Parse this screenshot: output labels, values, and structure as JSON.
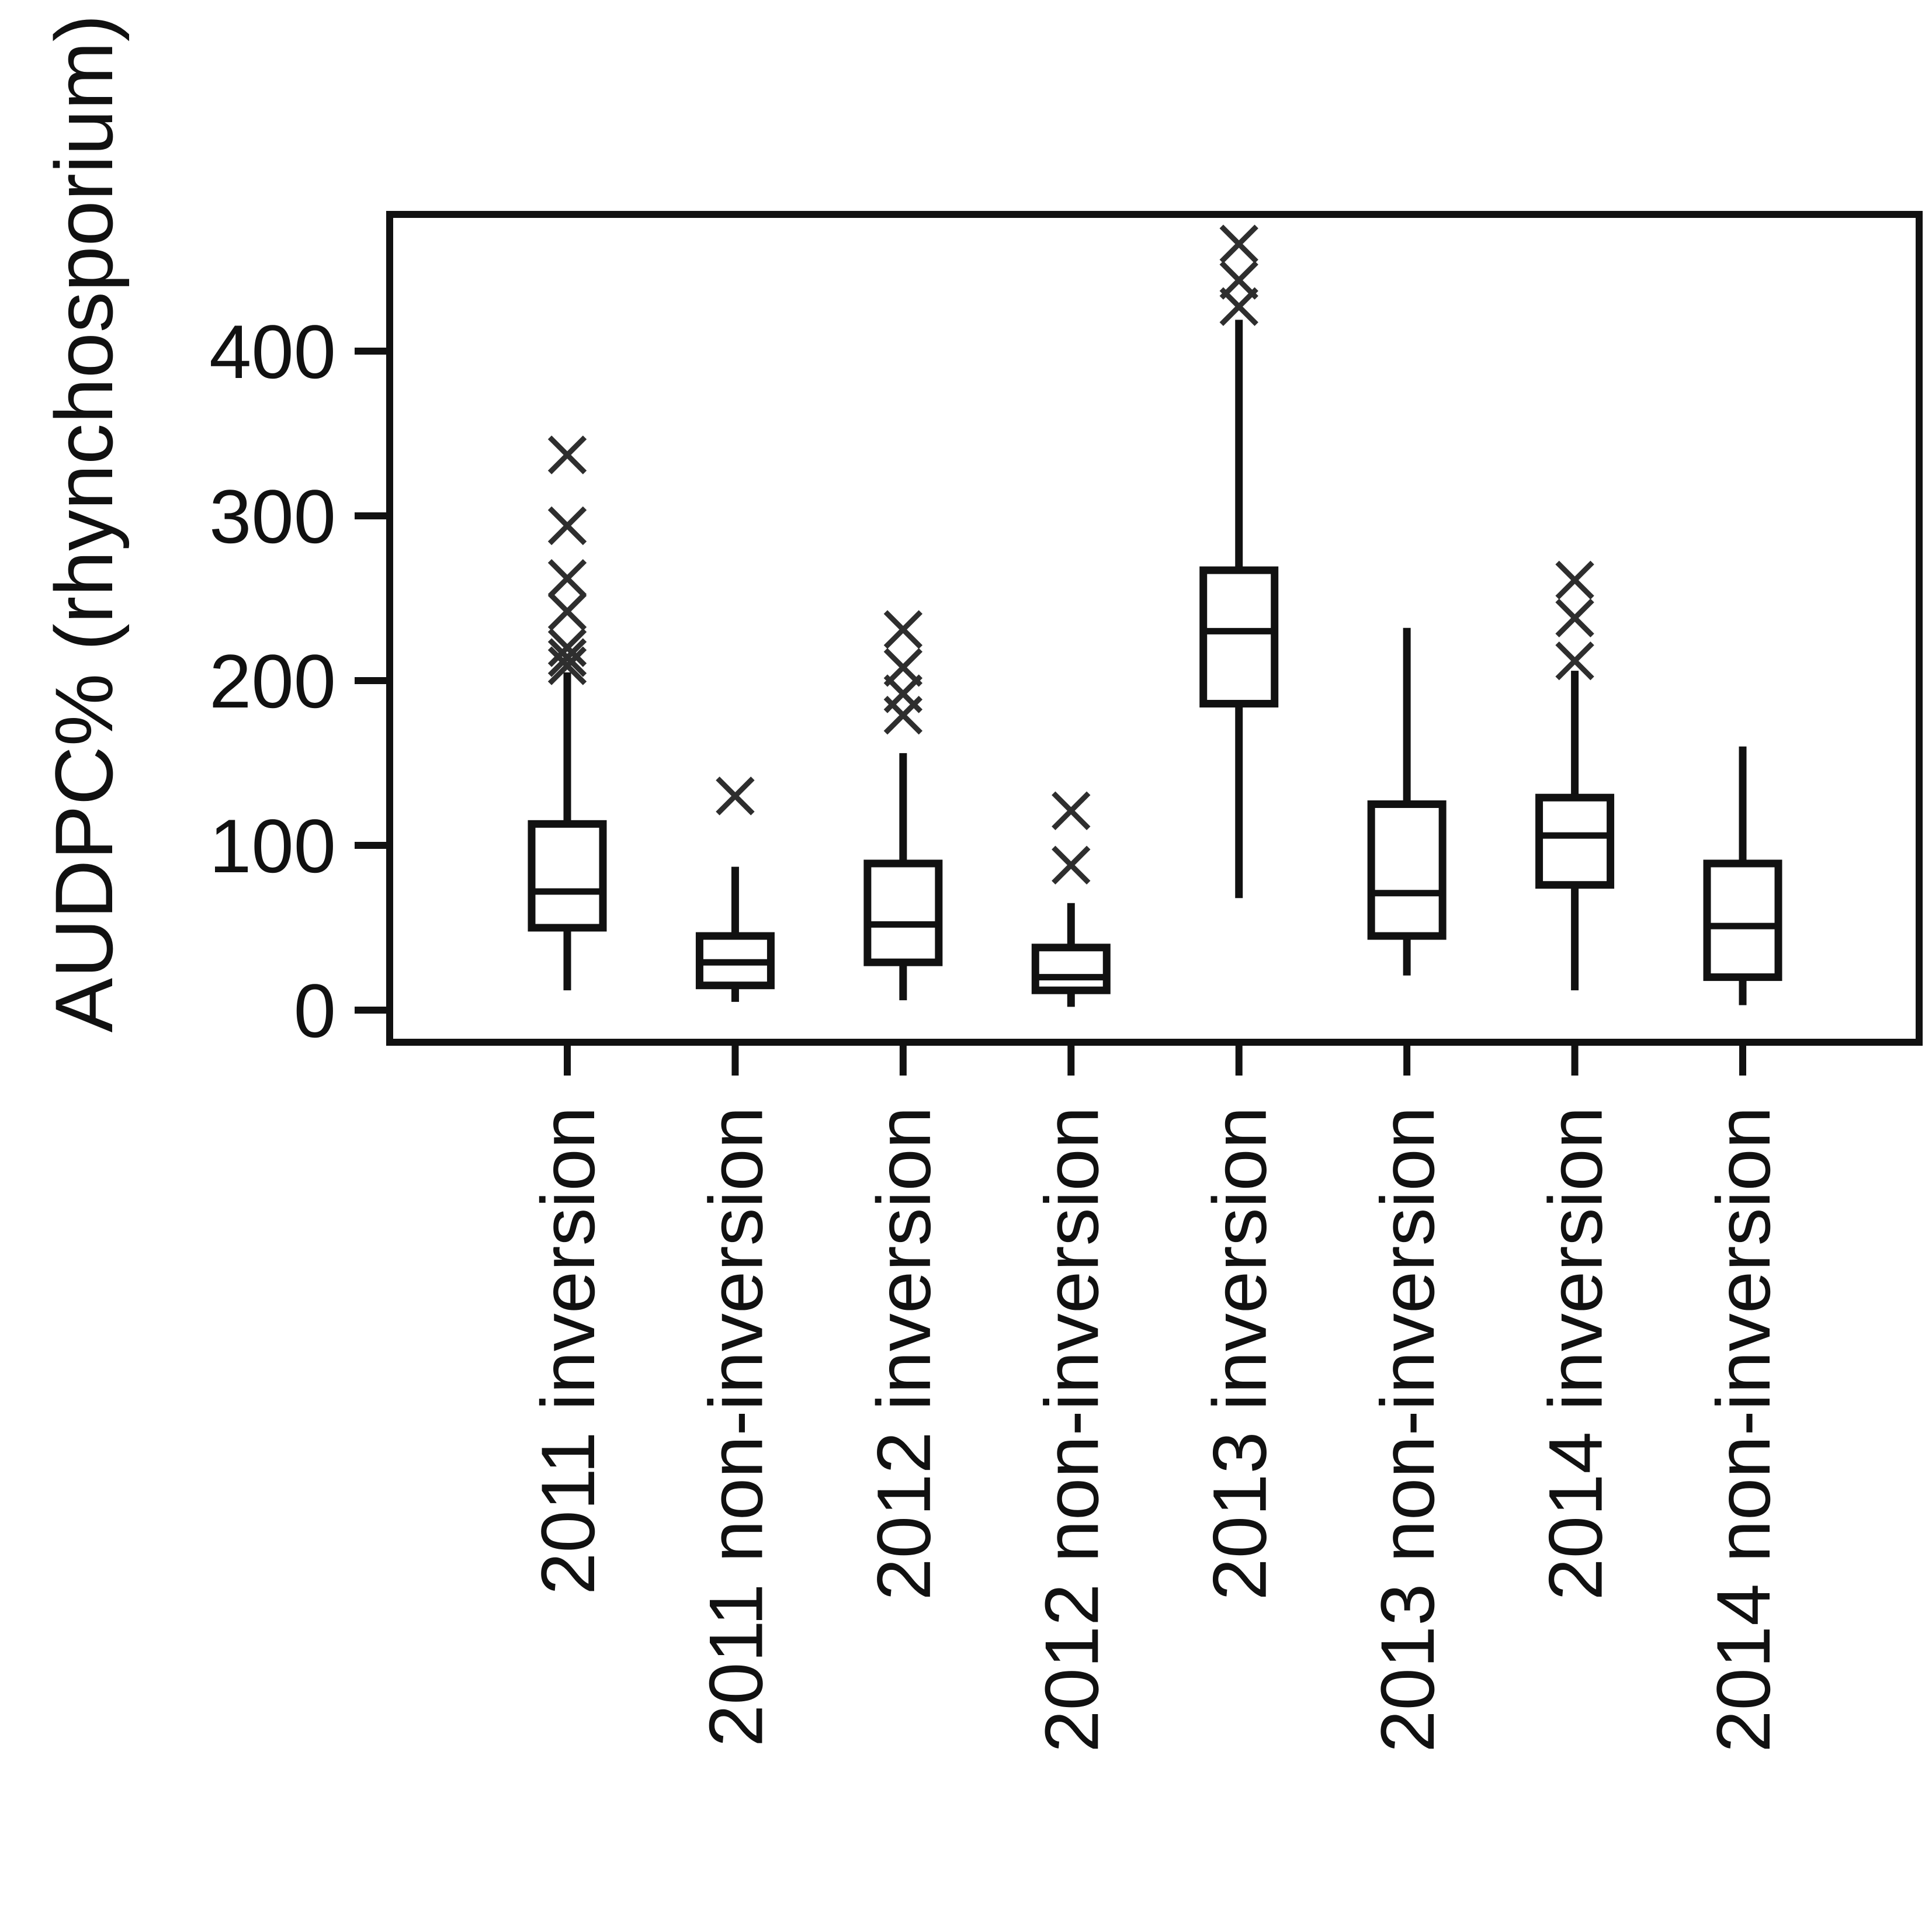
{
  "figure": {
    "background": "#ffffff",
    "ink_color": "#111111",
    "outlier_color": "#2e2e2e"
  },
  "chart_data": {
    "type": "boxplot",
    "title": "",
    "xlabel": "",
    "ylabel": "AUDPC% (rhynchosporium)",
    "ylim": [
      -20,
      483
    ],
    "yticks": [
      0,
      100,
      200,
      300,
      400
    ],
    "grid": false,
    "legend": false,
    "outlier_marker": "x-cross",
    "categories": [
      "2011 inversion",
      "2011 non-inversion",
      "2012 inversion",
      "2012 non-inversion",
      "2013 inversion",
      "2013 non-inversion",
      "2014 inversion",
      "2014 non-inversion"
    ],
    "boxes": [
      {
        "category": "2011 inversion",
        "whisker_low": 12,
        "q1": 50,
        "median": 72,
        "q3": 113,
        "whisker_high": 205,
        "outliers": [
          209,
          214,
          220,
          242,
          262,
          294,
          337
        ]
      },
      {
        "category": "2011 non-inversion",
        "whisker_low": 5,
        "q1": 15,
        "median": 29,
        "q3": 45,
        "whisker_high": 87,
        "outliers": [
          130
        ]
      },
      {
        "category": "2012 inversion",
        "whisker_low": 6,
        "q1": 29,
        "median": 52,
        "q3": 89,
        "whisker_high": 156,
        "outliers": [
          179,
          192,
          208,
          231
        ]
      },
      {
        "category": "2012 non-inversion",
        "whisker_low": 2,
        "q1": 12,
        "median": 20,
        "q3": 38,
        "whisker_high": 65,
        "outliers": [
          88,
          121
        ]
      },
      {
        "category": "2013 inversion",
        "whisker_low": 68,
        "q1": 186,
        "median": 230,
        "q3": 267,
        "whisker_high": 419,
        "outliers": [
          427,
          443,
          465
        ]
      },
      {
        "category": "2013 non-inversion",
        "whisker_low": 21,
        "q1": 45,
        "median": 71,
        "q3": 125,
        "whisker_high": 232,
        "outliers": []
      },
      {
        "category": "2014 inversion",
        "whisker_low": 12,
        "q1": 76,
        "median": 106,
        "q3": 129,
        "whisker_high": 206,
        "outliers": [
          212,
          238,
          261
        ]
      },
      {
        "category": "2014 non-inversion",
        "whisker_low": 3,
        "q1": 20,
        "median": 51,
        "q3": 89,
        "whisker_high": 160,
        "outliers": []
      }
    ]
  }
}
